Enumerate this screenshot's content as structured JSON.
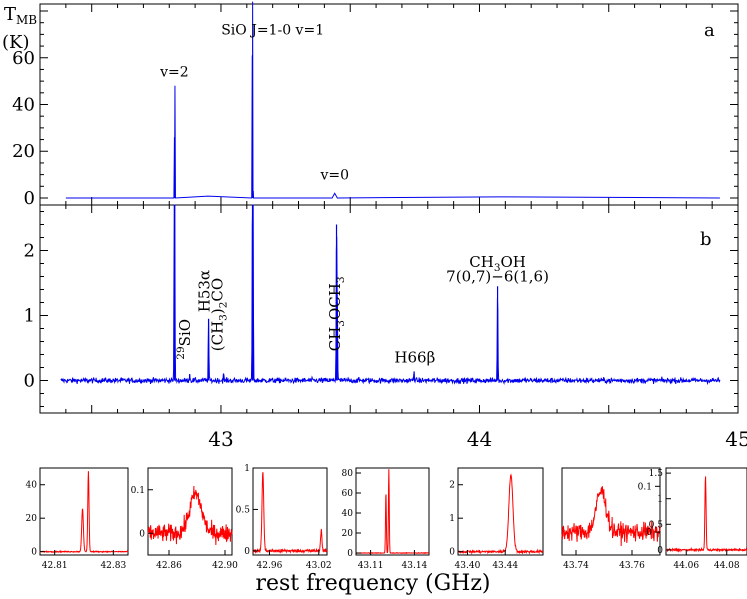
{
  "colors": {
    "main_spectrum": "#0000ee",
    "inset_spectrum": "#ff0000",
    "axes": "#000000"
  },
  "chart_data": [
    {
      "type": "line",
      "panel": "a",
      "panel_label": "a",
      "ylabel_line1": "T",
      "ylabel_sub": "MB",
      "ylabel_line2": "(K)",
      "xlim": [
        42.3,
        45.0
      ],
      "ylim": [
        -3,
        83
      ],
      "yticks": [
        0,
        20,
        40,
        60
      ],
      "ytick_labels": [
        "0",
        "20",
        "40",
        "60"
      ],
      "series": [
        {
          "x": [
            42.4,
            42.818,
            42.82,
            42.8205,
            42.822,
            42.824,
            42.95,
            43.119,
            43.121,
            43.1215,
            43.1225,
            43.124,
            43.125,
            43.126,
            43.43,
            43.44,
            43.45,
            44.07,
            44.93
          ],
          "y": [
            0,
            0,
            26,
            0,
            48,
            0,
            0.8,
            0,
            61,
            0,
            84,
            0,
            3,
            0,
            0,
            2,
            0,
            0.5,
            0
          ]
        }
      ],
      "annotations": [
        {
          "text": "v=2",
          "x": 42.82,
          "y": 52
        },
        {
          "text": "SiO J=1-0 v=1",
          "x": 43.2,
          "y": 70
        },
        {
          "text": "v=0",
          "x": 43.44,
          "y": 8
        }
      ]
    },
    {
      "type": "line",
      "panel": "b",
      "panel_label": "b",
      "xlim": [
        42.3,
        45.0
      ],
      "ylim": [
        -0.5,
        2.7
      ],
      "yticks": [
        0,
        1,
        2
      ],
      "ytick_labels": [
        "0",
        "1",
        "2"
      ],
      "xticks": [
        43,
        44,
        45
      ],
      "xtick_labels": [
        "43",
        "44",
        "45"
      ],
      "noise_level": 0.04,
      "peaks": [
        {
          "x": 42.82,
          "height": 2.8
        },
        {
          "x": 42.8205,
          "height": 2.8
        },
        {
          "x": 42.879,
          "height": 0.1
        },
        {
          "x": 42.952,
          "height": 0.95
        },
        {
          "x": 43.01,
          "height": 0.1
        },
        {
          "x": 43.122,
          "height": 2.8
        },
        {
          "x": 43.124,
          "height": 2.8
        },
        {
          "x": 43.447,
          "height": 2.4
        },
        {
          "x": 43.45,
          "height": 1.2
        },
        {
          "x": 43.747,
          "height": 0.14
        },
        {
          "x": 44.07,
          "height": 1.45
        }
      ],
      "annotations": [
        {
          "text_main": "SiO",
          "sup": "29",
          "x": 42.88,
          "y": 0.32,
          "rotate": true
        },
        {
          "text_main": "H53α",
          "x": 42.955,
          "y": 1.05,
          "rotate": true
        },
        {
          "text_main": "(CH",
          "sub": "3",
          "text_tail": ")",
          "sub2": "2",
          "tail2": "CO",
          "x": 43.005,
          "y": 0.45,
          "rotate": true
        },
        {
          "text_main": "CH",
          "sub": "3",
          "text_tail": "OCH",
          "sub2": "3",
          "x": 43.46,
          "y": 0.45,
          "rotate": true
        },
        {
          "text_main": "H66β",
          "x": 43.75,
          "y": 0.28,
          "rotate": false
        },
        {
          "text_main": "CH",
          "sub": "3",
          "text_tail": "OH",
          "x": 44.07,
          "y": 1.75,
          "rotate": false
        },
        {
          "text_main": "7(0,7)−6(1,6)",
          "x": 44.07,
          "y": 1.52,
          "rotate": false
        }
      ]
    },
    {
      "type": "line",
      "panel": "insets",
      "xlabel": "rest frequency (GHz)",
      "insets": [
        {
          "xlim": [
            42.805,
            42.835
          ],
          "ylim": [
            -2,
            50
          ],
          "xticks": [
            42.81,
            42.83
          ],
          "xtick_labels": [
            "42.81",
            "42.83"
          ],
          "yticks": [
            0,
            20,
            40
          ],
          "ytick_labels": [
            "0",
            "20",
            "40"
          ],
          "ytick_side": "left",
          "peaks": [
            {
              "x": 42.8195,
              "height": 26,
              "w": 0.0004
            },
            {
              "x": 42.8215,
              "height": 48,
              "w": 0.0003
            }
          ],
          "noise": 0.3
        },
        {
          "xlim": [
            42.845,
            42.905
          ],
          "ylim": [
            -0.05,
            0.15
          ],
          "xticks": [
            42.86,
            42.9
          ],
          "xtick_labels": [
            "42.86",
            "42.90"
          ],
          "yticks": [
            0,
            0.1
          ],
          "ytick_labels": [
            "0",
            "0.1"
          ],
          "ytick_side": "left",
          "peaks": [
            {
              "x": 42.879,
              "height": 0.09,
              "w": 0.006
            }
          ],
          "noise": 0.02
        },
        {
          "xlim": [
            42.94,
            43.03
          ],
          "ylim": [
            -0.05,
            1.0
          ],
          "xticks": [
            42.96,
            43.02
          ],
          "xtick_labels": [
            "42.96",
            "43.02"
          ],
          "yticks": [
            0,
            0.5,
            1
          ],
          "ytick_labels": [
            "0",
            "0.5",
            "1"
          ],
          "ytick_side": "left",
          "peaks": [
            {
              "x": 42.952,
              "height": 0.95,
              "w": 0.0015
            },
            {
              "x": 43.023,
              "height": 0.25,
              "w": 0.0012
            }
          ],
          "noise": 0.02
        },
        {
          "xlim": [
            43.1,
            43.15
          ],
          "ylim": [
            -2,
            85
          ],
          "xticks": [
            43.11,
            43.14
          ],
          "xtick_labels": [
            "43.11",
            "43.14"
          ],
          "yticks": [
            0,
            20,
            40,
            60,
            80
          ],
          "ytick_labels": [
            "0",
            "20",
            "40",
            "60",
            "80"
          ],
          "ytick_side": "left",
          "peaks": [
            {
              "x": 43.1205,
              "height": 61,
              "w": 0.0004
            },
            {
              "x": 43.1225,
              "height": 84,
              "w": 0.0004
            }
          ],
          "noise": 0.3
        },
        {
          "xlim": [
            43.39,
            43.48
          ],
          "ylim": [
            -0.1,
            2.5
          ],
          "xticks": [
            43.4,
            43.44
          ],
          "xtick_labels": [
            "43.40",
            "43.44"
          ],
          "yticks": [
            0,
            1,
            2
          ],
          "ytick_labels": [
            "0",
            "1",
            "2"
          ],
          "ytick_side": "left",
          "peaks": [
            {
              "x": 43.446,
              "height": 2.3,
              "w": 0.003
            }
          ],
          "noise": 0.04
        },
        {
          "xlim": [
            43.735,
            43.77
          ],
          "ylim": [
            -0.05,
            0.14
          ],
          "xticks": [
            43.74,
            43.76
          ],
          "xtick_labels": [
            "43.74",
            "43.76"
          ],
          "yticks": [
            0,
            0.1
          ],
          "ytick_labels": [
            "0",
            "0.1"
          ],
          "ytick_side": "right",
          "peaks": [
            {
              "x": 43.749,
              "height": 0.09,
              "w": 0.0025
            }
          ],
          "noise": 0.02
        },
        {
          "xlim": [
            44.05,
            44.09
          ],
          "ylim": [
            -0.1,
            1.6
          ],
          "xticks": [
            44.06,
            44.08
          ],
          "xtick_labels": [
            "44.06",
            "44.08"
          ],
          "yticks": [
            0,
            0.5,
            1,
            1.5
          ],
          "ytick_labels": [
            "0",
            "0.5",
            "1",
            "1.5"
          ],
          "ytick_side": "left",
          "peaks": [
            {
              "x": 44.0695,
              "height": 1.45,
              "w": 0.0004
            }
          ],
          "noise": 0.02
        }
      ]
    }
  ]
}
